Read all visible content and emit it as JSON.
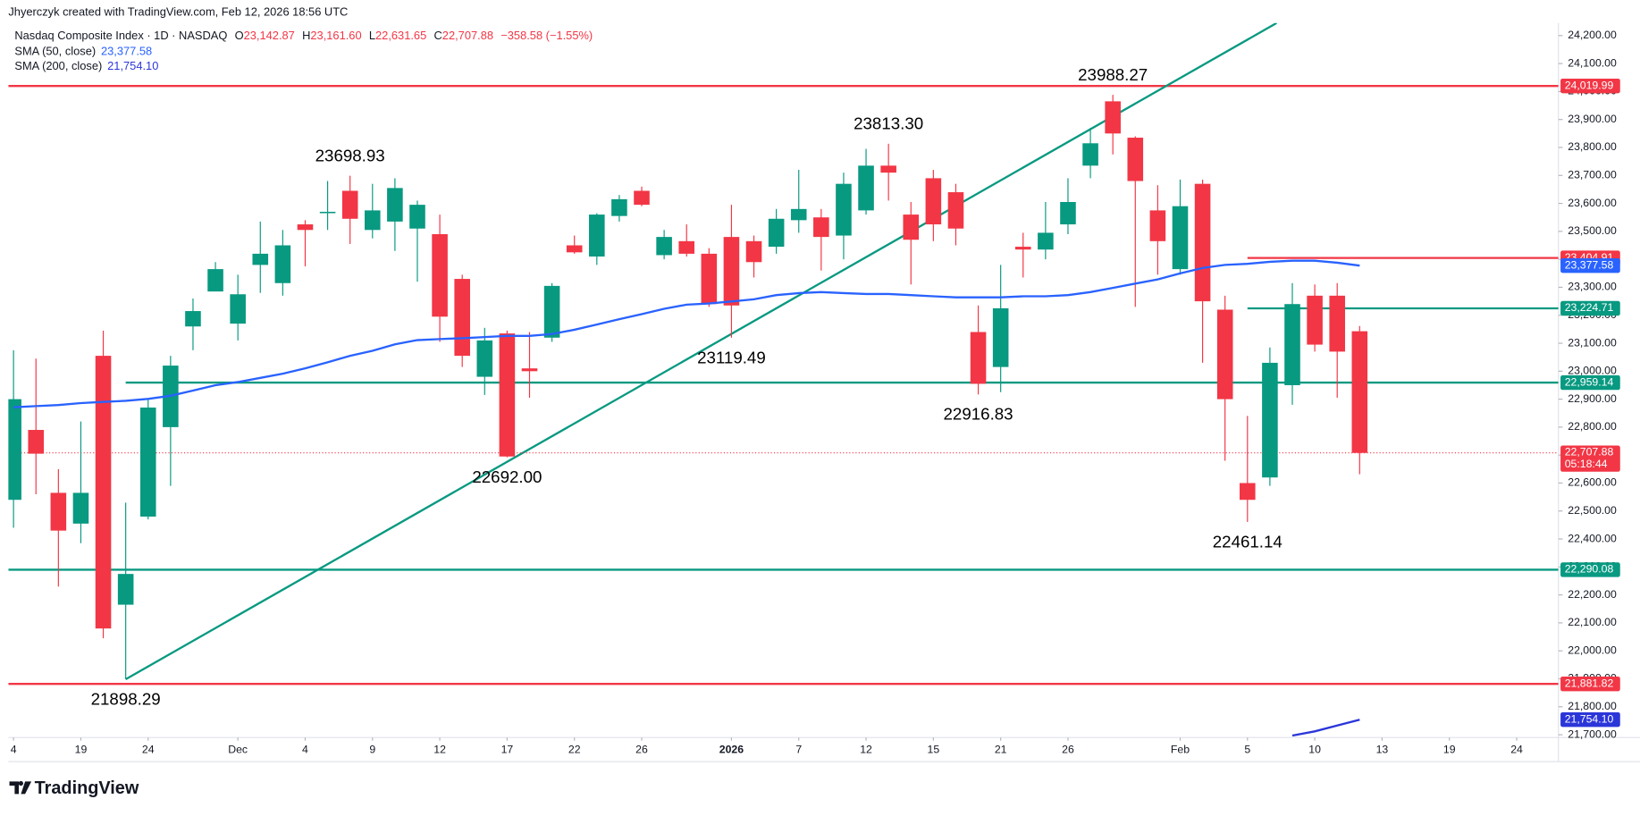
{
  "header": {
    "credit": "Jhyerczyk created with TradingView.com, Feb 12, 2026 18:56 UTC",
    "symbol": "Nasdaq Composite Index · 1D · NASDAQ",
    "o": "O",
    "o_value": "23,142.87",
    "h": "H",
    "h_value": "23,161.60",
    "l": "L",
    "l_value": "22,631.65",
    "c": "C",
    "c_value": "22,707.88",
    "change": "−358.58 (−1.55%)"
  },
  "footer": {
    "brand": "TradingView"
  },
  "chart_data": {
    "type": "candlestick",
    "up_color": "#089981",
    "down_color": "#f23645",
    "open": [
      22540,
      22790,
      22565,
      22455,
      23055,
      22165,
      22480,
      22800,
      23160,
      23285,
      23170,
      23380,
      23315,
      23525,
      23565,
      23645,
      23505,
      23535,
      23510,
      23490,
      23330,
      22980,
      23135,
      23010,
      23120,
      23450,
      23410,
      23555,
      23645,
      23415,
      23465,
      23420,
      23480,
      23465,
      23445,
      23540,
      23550,
      23485,
      23575,
      23735,
      23560,
      23690,
      23640,
      23140,
      23015,
      23445,
      23435,
      23525,
      23735,
      23965,
      23835,
      23575,
      23365,
      23670,
      23220,
      22600,
      22620,
      22950,
      23270,
      23270,
      23142.87
    ],
    "high": [
      23075,
      23045,
      22650,
      22820,
      23145,
      22530,
      22900,
      23055,
      23260,
      23390,
      23345,
      23535,
      23505,
      23540,
      23680,
      23698.93,
      23670,
      23690,
      23610,
      23560,
      23345,
      23155,
      23145,
      23140,
      23315,
      23485,
      23565,
      23630,
      23660,
      23505,
      23525,
      23440,
      23595,
      23485,
      23580,
      23720,
      23580,
      23710,
      23795,
      23813.3,
      23605,
      23720,
      23670,
      23235,
      23380,
      23495,
      23605,
      23690,
      23870,
      23988.27,
      23840,
      23665,
      23685,
      23685,
      23270,
      22840,
      23085,
      23315,
      23310,
      23315,
      23161.6
    ],
    "low": [
      22440,
      22560,
      22230,
      22385,
      22045,
      21898.29,
      22470,
      22590,
      23075,
      23295,
      23110,
      23280,
      23270,
      23375,
      23505,
      23455,
      23475,
      23430,
      23320,
      23105,
      23015,
      22915,
      22692,
      22905,
      23105,
      23420,
      23380,
      23535,
      23590,
      23400,
      23410,
      23230,
      23119.49,
      23335,
      23420,
      23495,
      23360,
      23400,
      23560,
      23610,
      23310,
      23465,
      23450,
      22916.83,
      22925,
      23335,
      23400,
      23490,
      23690,
      23775,
      23230,
      23345,
      23345,
      23030,
      22680,
      22461.14,
      22590,
      22880,
      23070,
      22905,
      22631.65
    ],
    "close": [
      22900,
      22705,
      22430,
      22565,
      22080,
      22275,
      22870,
      23020,
      23215,
      23365,
      23275,
      23420,
      23450,
      23505,
      23570,
      23545,
      23575,
      23655,
      23595,
      23195,
      23055,
      23110,
      22695,
      23000,
      23305,
      23425,
      23560,
      23615,
      23595,
      23480,
      23420,
      23240,
      23235,
      23390,
      23545,
      23580,
      23480,
      23670,
      23735,
      23710,
      23470,
      23525,
      23510,
      22955,
      23225,
      23435,
      23495,
      23605,
      23815,
      23850,
      23680,
      23465,
      23590,
      23250,
      22900,
      22540,
      23030,
      23240,
      23095,
      23070,
      22707.88
    ],
    "last_price_label": "22,707.88",
    "countdown": "05:18:44",
    "series": [
      {
        "name": "SMA (50, close)",
        "color": "#2962ff",
        "value_label": "23,377.58",
        "values": [
          22871,
          22875,
          22879,
          22886,
          22890,
          22894,
          22901,
          22912,
          22931,
          22950,
          22961,
          22976,
          22991,
          23010,
          23032,
          23055,
          23073,
          23096,
          23111,
          23115,
          23118,
          23122,
          23126,
          23126,
          23133,
          23148,
          23167,
          23186,
          23204,
          23223,
          23238,
          23242,
          23249,
          23257,
          23272,
          23279,
          23283,
          23279,
          23276,
          23276,
          23272,
          23268,
          23264,
          23264,
          23264,
          23268,
          23268,
          23272,
          23283,
          23298,
          23313,
          23328,
          23350,
          23369,
          23380,
          23384,
          23391,
          23395,
          23395,
          23388,
          23377.58
        ]
      },
      {
        "name": "SMA (200, close)",
        "color": "#2b36d9",
        "value_label": "21,754.10",
        "values": [
          null,
          null,
          null,
          null,
          null,
          null,
          null,
          null,
          null,
          null,
          null,
          null,
          null,
          null,
          null,
          null,
          null,
          null,
          null,
          null,
          null,
          null,
          null,
          null,
          null,
          null,
          null,
          null,
          null,
          null,
          null,
          null,
          null,
          null,
          null,
          null,
          null,
          null,
          null,
          null,
          null,
          null,
          null,
          null,
          null,
          null,
          null,
          null,
          null,
          null,
          null,
          null,
          null,
          null,
          null,
          null,
          null,
          21697,
          21712,
          21733,
          21754.1
        ]
      }
    ],
    "levels": [
      {
        "value": 24019.99,
        "label": "24,019.99",
        "color": "#f23645"
      },
      {
        "value": 23404.91,
        "label": "23,404.91",
        "color": "#f23645",
        "from": 55
      },
      {
        "value": 23224.71,
        "label": "23,224.71",
        "color": "#089981",
        "from": 55
      },
      {
        "value": 22959.14,
        "label": "22,959.14",
        "color": "#089981",
        "from": 5
      },
      {
        "value": 22290.08,
        "label": "22,290.08",
        "color": "#089981"
      },
      {
        "value": 21881.82,
        "label": "21,881.82",
        "color": "#f23645"
      }
    ],
    "trendline": {
      "x": [
        5,
        56.3
      ],
      "values": [
        21898.29,
        24245
      ],
      "color": "#089981"
    },
    "annotations": [
      {
        "label": "21898.29",
        "index": 5,
        "at": "low"
      },
      {
        "label": "23698.93",
        "index": 15,
        "at": "high"
      },
      {
        "label": "22692.00",
        "index": 22,
        "at": "low"
      },
      {
        "label": "23119.49",
        "index": 32,
        "at": "low"
      },
      {
        "label": "23813.30",
        "index": 39,
        "at": "high"
      },
      {
        "label": "22916.83",
        "index": 43,
        "at": "low"
      },
      {
        "label": "23988.27",
        "index": 49,
        "at": "high"
      },
      {
        "label": "22461.14",
        "index": 55,
        "at": "low"
      }
    ],
    "xlim": [
      -0.23,
      68.86
    ],
    "xticks": [
      {
        "value": 0,
        "label": "4"
      },
      {
        "value": 3,
        "label": "19"
      },
      {
        "value": 6,
        "label": "24"
      },
      {
        "value": 10,
        "label": "Dec"
      },
      {
        "value": 13,
        "label": "4"
      },
      {
        "value": 16,
        "label": "9"
      },
      {
        "value": 19,
        "label": "12"
      },
      {
        "value": 22,
        "label": "17"
      },
      {
        "value": 25,
        "label": "22"
      },
      {
        "value": 28,
        "label": "26"
      },
      {
        "value": 32,
        "label": "2026",
        "bold": true
      },
      {
        "value": 35,
        "label": "7"
      },
      {
        "value": 38,
        "label": "12"
      },
      {
        "value": 41,
        "label": "15"
      },
      {
        "value": 44,
        "label": "21"
      },
      {
        "value": 47,
        "label": "26"
      },
      {
        "value": 52,
        "label": "Feb"
      },
      {
        "value": 55,
        "label": "5"
      },
      {
        "value": 58,
        "label": "10"
      },
      {
        "value": 61,
        "label": "13"
      },
      {
        "value": 64,
        "label": "19"
      },
      {
        "value": 67,
        "label": "24"
      }
    ],
    "ylim": [
      21690,
      24245
    ],
    "yticks": [
      {
        "value": 21700,
        "label": "21,700.00"
      },
      {
        "value": 21800,
        "label": "21,800.00"
      },
      {
        "value": 21900,
        "label": "21,900.00"
      },
      {
        "value": 22000,
        "label": "22,000.00"
      },
      {
        "value": 22100,
        "label": "22,100.00"
      },
      {
        "value": 22200,
        "label": "22,200.00"
      },
      {
        "value": 22300,
        "label": "22,300.00"
      },
      {
        "value": 22400,
        "label": "22,400.00"
      },
      {
        "value": 22500,
        "label": "22,500.00"
      },
      {
        "value": 22600,
        "label": "22,600.00"
      },
      {
        "value": 22700,
        "label": "22,700.00"
      },
      {
        "value": 22800,
        "label": "22,800.00"
      },
      {
        "value": 22900,
        "label": "22,900.00"
      },
      {
        "value": 23000,
        "label": "23,000.00"
      },
      {
        "value": 23100,
        "label": "23,100.00"
      },
      {
        "value": 23200,
        "label": "23,200.00"
      },
      {
        "value": 23300,
        "label": "23,300.00"
      },
      {
        "value": 23400,
        "label": "23,400.00"
      },
      {
        "value": 23500,
        "label": "23,500.00"
      },
      {
        "value": 23600,
        "label": "23,600.00"
      },
      {
        "value": 23700,
        "label": "23,700.00"
      },
      {
        "value": 23800,
        "label": "23,800.00"
      },
      {
        "value": 23900,
        "label": "23,900.00"
      },
      {
        "value": 24000,
        "label": "24,000.00"
      },
      {
        "value": 24100,
        "label": "24,100.00"
      },
      {
        "value": 24200,
        "label": "24,200.00"
      }
    ],
    "grid": false
  }
}
